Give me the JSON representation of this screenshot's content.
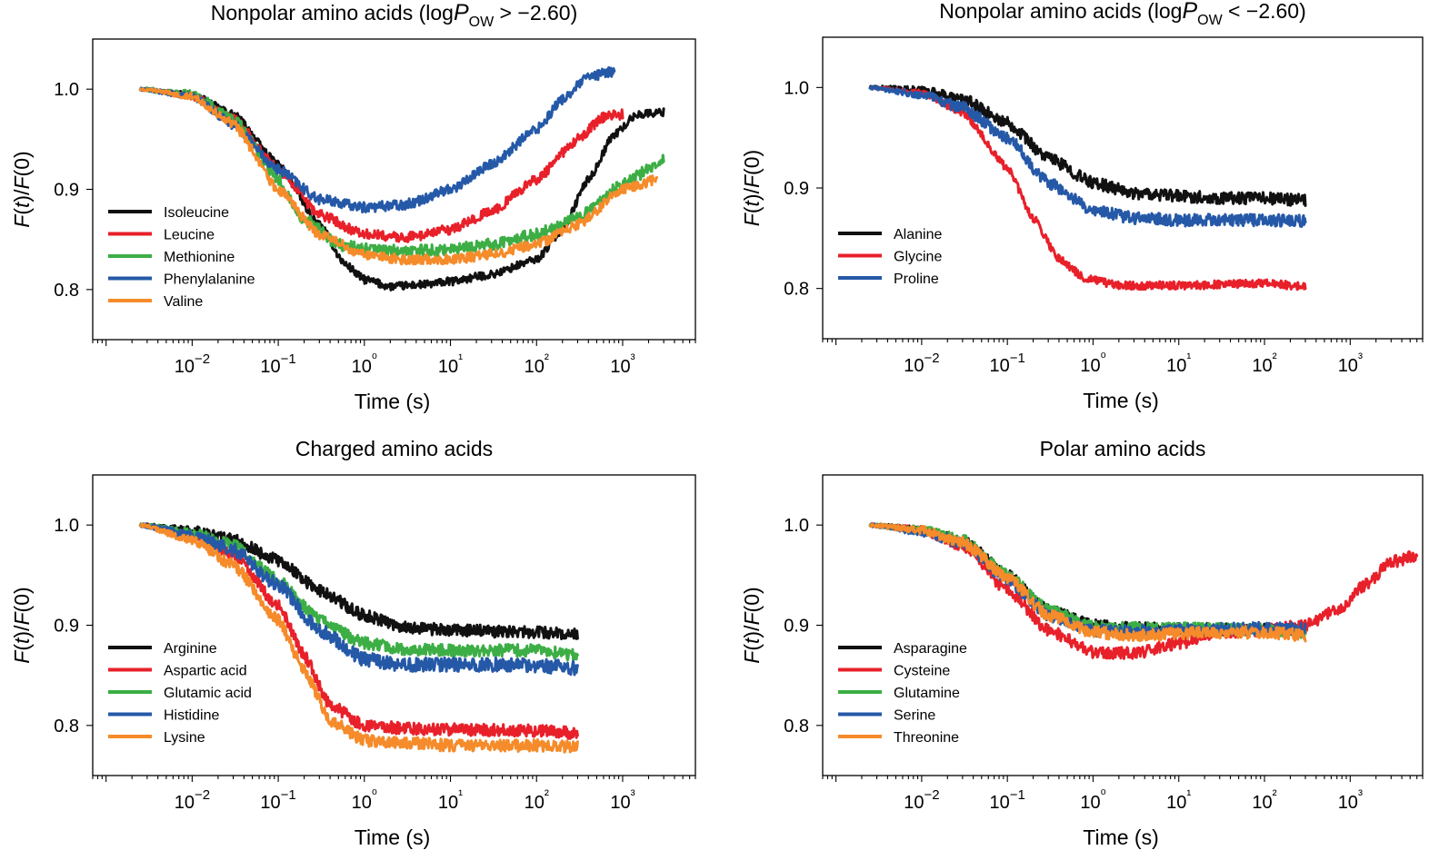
{
  "figure": {
    "x_axis_label": "Time (s)",
    "y_axis_label": "F(t)/F(0)"
  },
  "colors": {
    "black": "#111111",
    "red": "#e8202a",
    "green": "#3cae45",
    "blue": "#2559a8",
    "orange": "#f58b2a"
  },
  "chart_data": [
    {
      "type": "line",
      "title_main": "Nonpolar amino acids (log",
      "title_var": "P",
      "title_sub": "OW",
      "title_rest": " > −2.60)",
      "xlabel": "Time (s)",
      "ylabel": "F(t)/F(0)",
      "xscale": "log",
      "xlim": [
        0.0007,
        7000
      ],
      "ylim": [
        0.75,
        1.05
      ],
      "xticks": [
        "10−2",
        "10−1",
        "10⁰",
        "10¹",
        "10²",
        "10³"
      ],
      "yticks": [
        "0.8",
        "0.9",
        "1.0"
      ],
      "legend_position": "lower-left",
      "series": [
        {
          "name": "Isoleucine",
          "color": "#111111",
          "noise": 0.004,
          "points": [
            [
              0.0025,
              1.0
            ],
            [
              0.01,
              0.995
            ],
            [
              0.03,
              0.975
            ],
            [
              0.1,
              0.925
            ],
            [
              0.3,
              0.865
            ],
            [
              0.6,
              0.825
            ],
            [
              1,
              0.81
            ],
            [
              2,
              0.803
            ],
            [
              5,
              0.805
            ],
            [
              10,
              0.808
            ],
            [
              30,
              0.815
            ],
            [
              100,
              0.83
            ],
            [
              200,
              0.86
            ],
            [
              400,
              0.91
            ],
            [
              800,
              0.955
            ],
            [
              1500,
              0.975
            ],
            [
              3000,
              0.977
            ]
          ]
        },
        {
          "name": "Leucine",
          "color": "#e8202a",
          "noise": 0.005,
          "points": [
            [
              0.0025,
              1.0
            ],
            [
              0.01,
              0.993
            ],
            [
              0.03,
              0.97
            ],
            [
              0.1,
              0.92
            ],
            [
              0.3,
              0.875
            ],
            [
              1,
              0.855
            ],
            [
              3,
              0.852
            ],
            [
              10,
              0.86
            ],
            [
              30,
              0.878
            ],
            [
              100,
              0.91
            ],
            [
              300,
              0.95
            ],
            [
              600,
              0.972
            ],
            [
              1000,
              0.975
            ]
          ]
        },
        {
          "name": "Methionine",
          "color": "#3cae45",
          "noise": 0.006,
          "points": [
            [
              0.0025,
              1.0
            ],
            [
              0.01,
              0.995
            ],
            [
              0.03,
              0.97
            ],
            [
              0.1,
              0.91
            ],
            [
              0.2,
              0.87
            ],
            [
              0.5,
              0.845
            ],
            [
              1,
              0.84
            ],
            [
              3,
              0.838
            ],
            [
              10,
              0.84
            ],
            [
              30,
              0.845
            ],
            [
              100,
              0.855
            ],
            [
              300,
              0.872
            ],
            [
              1000,
              0.905
            ],
            [
              3000,
              0.93
            ]
          ]
        },
        {
          "name": "Phenylalanine",
          "color": "#2559a8",
          "noise": 0.005,
          "points": [
            [
              0.0025,
              1.0
            ],
            [
              0.01,
              0.993
            ],
            [
              0.03,
              0.965
            ],
            [
              0.1,
              0.92
            ],
            [
              0.3,
              0.89
            ],
            [
              1,
              0.882
            ],
            [
              3,
              0.885
            ],
            [
              10,
              0.9
            ],
            [
              30,
              0.925
            ],
            [
              100,
              0.96
            ],
            [
              200,
              0.99
            ],
            [
              400,
              1.012
            ],
            [
              800,
              1.018
            ]
          ]
        },
        {
          "name": "Valine",
          "color": "#f58b2a",
          "noise": 0.005,
          "points": [
            [
              0.0025,
              1.0
            ],
            [
              0.01,
              0.993
            ],
            [
              0.03,
              0.965
            ],
            [
              0.1,
              0.9
            ],
            [
              0.3,
              0.855
            ],
            [
              1,
              0.835
            ],
            [
              3,
              0.83
            ],
            [
              10,
              0.83
            ],
            [
              30,
              0.835
            ],
            [
              100,
              0.845
            ],
            [
              300,
              0.865
            ],
            [
              1000,
              0.9
            ],
            [
              2500,
              0.91
            ]
          ]
        }
      ]
    },
    {
      "type": "line",
      "title_main": "Nonpolar amino acids (log",
      "title_var": "P",
      "title_sub": "OW",
      "title_rest": " < −2.60)",
      "xlabel": "Time (s)",
      "ylabel": "F(t)/F(0)",
      "xscale": "log",
      "xlim": [
        0.0007,
        7000
      ],
      "ylim": [
        0.75,
        1.05
      ],
      "xticks": [
        "10−2",
        "10−1",
        "10⁰",
        "10¹",
        "10²",
        "10³"
      ],
      "yticks": [
        "0.8",
        "0.9",
        "1.0"
      ],
      "legend_position": "lower-left",
      "series": [
        {
          "name": "Alanine",
          "color": "#111111",
          "noise": 0.006,
          "points": [
            [
              0.0025,
              1.0
            ],
            [
              0.01,
              0.997
            ],
            [
              0.03,
              0.988
            ],
            [
              0.1,
              0.965
            ],
            [
              0.3,
              0.93
            ],
            [
              1,
              0.905
            ],
            [
              3,
              0.895
            ],
            [
              10,
              0.892
            ],
            [
              30,
              0.89
            ],
            [
              100,
              0.89
            ],
            [
              300,
              0.888
            ]
          ]
        },
        {
          "name": "Glycine",
          "color": "#e8202a",
          "noise": 0.004,
          "points": [
            [
              0.0025,
              1.0
            ],
            [
              0.01,
              0.995
            ],
            [
              0.03,
              0.975
            ],
            [
              0.1,
              0.92
            ],
            [
              0.2,
              0.87
            ],
            [
              0.4,
              0.83
            ],
            [
              0.8,
              0.81
            ],
            [
              2,
              0.803
            ],
            [
              10,
              0.803
            ],
            [
              100,
              0.805
            ],
            [
              300,
              0.802
            ]
          ]
        },
        {
          "name": "Proline",
          "color": "#2559a8",
          "noise": 0.006,
          "points": [
            [
              0.0025,
              1.0
            ],
            [
              0.01,
              0.993
            ],
            [
              0.03,
              0.98
            ],
            [
              0.1,
              0.95
            ],
            [
              0.3,
              0.905
            ],
            [
              1,
              0.878
            ],
            [
              3,
              0.87
            ],
            [
              10,
              0.868
            ],
            [
              100,
              0.868
            ],
            [
              300,
              0.867
            ]
          ]
        }
      ]
    },
    {
      "type": "line",
      "title_main": "Charged amino acids",
      "title_var": "",
      "title_sub": "",
      "title_rest": "",
      "xlabel": "Time (s)",
      "ylabel": "F(t)/F(0)",
      "xscale": "log",
      "xlim": [
        0.0007,
        7000
      ],
      "ylim": [
        0.75,
        1.05
      ],
      "xticks": [
        "10−2",
        "10−1",
        "10⁰",
        "10¹",
        "10²",
        "10³"
      ],
      "yticks": [
        "0.8",
        "0.9",
        "1.0"
      ],
      "legend_position": "lower-left",
      "series": [
        {
          "name": "Arginine",
          "color": "#111111",
          "noise": 0.006,
          "points": [
            [
              0.0025,
              1.0
            ],
            [
              0.01,
              0.995
            ],
            [
              0.03,
              0.985
            ],
            [
              0.1,
              0.965
            ],
            [
              0.3,
              0.935
            ],
            [
              1,
              0.91
            ],
            [
              3,
              0.898
            ],
            [
              10,
              0.895
            ],
            [
              100,
              0.893
            ],
            [
              300,
              0.891
            ]
          ]
        },
        {
          "name": "Aspartic acid",
          "color": "#e8202a",
          "noise": 0.006,
          "points": [
            [
              0.0025,
              1.0
            ],
            [
              0.01,
              0.99
            ],
            [
              0.03,
              0.97
            ],
            [
              0.1,
              0.92
            ],
            [
              0.2,
              0.87
            ],
            [
              0.4,
              0.82
            ],
            [
              1,
              0.8
            ],
            [
              3,
              0.797
            ],
            [
              10,
              0.796
            ],
            [
              100,
              0.795
            ],
            [
              300,
              0.792
            ]
          ]
        },
        {
          "name": "Glutamic acid",
          "color": "#3cae45",
          "noise": 0.006,
          "points": [
            [
              0.0025,
              1.0
            ],
            [
              0.01,
              0.993
            ],
            [
              0.03,
              0.98
            ],
            [
              0.1,
              0.945
            ],
            [
              0.3,
              0.905
            ],
            [
              1,
              0.882
            ],
            [
              3,
              0.876
            ],
            [
              10,
              0.875
            ],
            [
              100,
              0.875
            ],
            [
              300,
              0.87
            ]
          ]
        },
        {
          "name": "Histidine",
          "color": "#2559a8",
          "noise": 0.007,
          "points": [
            [
              0.0025,
              1.0
            ],
            [
              0.01,
              0.99
            ],
            [
              0.03,
              0.975
            ],
            [
              0.1,
              0.94
            ],
            [
              0.3,
              0.895
            ],
            [
              1,
              0.866
            ],
            [
              3,
              0.86
            ],
            [
              10,
              0.861
            ],
            [
              100,
              0.86
            ],
            [
              300,
              0.857
            ]
          ]
        },
        {
          "name": "Lysine",
          "color": "#f58b2a",
          "noise": 0.006,
          "points": [
            [
              0.0025,
              1.0
            ],
            [
              0.01,
              0.985
            ],
            [
              0.03,
              0.96
            ],
            [
              0.1,
              0.905
            ],
            [
              0.2,
              0.855
            ],
            [
              0.4,
              0.805
            ],
            [
              1,
              0.785
            ],
            [
              3,
              0.783
            ],
            [
              10,
              0.78
            ],
            [
              100,
              0.78
            ],
            [
              300,
              0.779
            ]
          ]
        }
      ]
    },
    {
      "type": "line",
      "title_main": "Polar amino acids",
      "title_var": "",
      "title_sub": "",
      "title_rest": "",
      "xlabel": "Time (s)",
      "ylabel": "F(t)/F(0)",
      "xscale": "log",
      "xlim": [
        0.0007,
        7000
      ],
      "ylim": [
        0.75,
        1.05
      ],
      "xticks": [
        "10−2",
        "10−1",
        "10⁰",
        "10¹",
        "10²",
        "10³"
      ],
      "yticks": [
        "0.8",
        "0.9",
        "1.0"
      ],
      "legend_position": "lower-left",
      "series": [
        {
          "name": "Asparagine",
          "color": "#111111",
          "noise": 0.006,
          "points": [
            [
              0.0025,
              1.0
            ],
            [
              0.01,
              0.995
            ],
            [
              0.03,
              0.985
            ],
            [
              0.1,
              0.95
            ],
            [
              0.3,
              0.915
            ],
            [
              1,
              0.9
            ],
            [
              3,
              0.897
            ],
            [
              10,
              0.896
            ],
            [
              100,
              0.896
            ],
            [
              300,
              0.895
            ]
          ]
        },
        {
          "name": "Cysteine",
          "color": "#e8202a",
          "noise": 0.006,
          "points": [
            [
              0.0025,
              1.0
            ],
            [
              0.01,
              0.995
            ],
            [
              0.03,
              0.98
            ],
            [
              0.1,
              0.935
            ],
            [
              0.3,
              0.895
            ],
            [
              1,
              0.873
            ],
            [
              3,
              0.872
            ],
            [
              10,
              0.882
            ],
            [
              30,
              0.893
            ],
            [
              100,
              0.895
            ],
            [
              300,
              0.9
            ],
            [
              700,
              0.915
            ],
            [
              1500,
              0.94
            ],
            [
              3000,
              0.963
            ],
            [
              6000,
              0.97
            ]
          ]
        },
        {
          "name": "Glutamine",
          "color": "#3cae45",
          "noise": 0.006,
          "points": [
            [
              0.0025,
              1.0
            ],
            [
              0.01,
              0.995
            ],
            [
              0.03,
              0.985
            ],
            [
              0.1,
              0.95
            ],
            [
              0.3,
              0.915
            ],
            [
              1,
              0.898
            ],
            [
              3,
              0.897
            ],
            [
              10,
              0.897
            ],
            [
              100,
              0.895
            ],
            [
              300,
              0.893
            ]
          ]
        },
        {
          "name": "Serine",
          "color": "#2559a8",
          "noise": 0.006,
          "points": [
            [
              0.0025,
              1.0
            ],
            [
              0.01,
              0.993
            ],
            [
              0.03,
              0.982
            ],
            [
              0.1,
              0.945
            ],
            [
              0.3,
              0.91
            ],
            [
              1,
              0.895
            ],
            [
              3,
              0.894
            ],
            [
              10,
              0.895
            ],
            [
              100,
              0.897
            ],
            [
              300,
              0.897
            ]
          ]
        },
        {
          "name": "Threonine",
          "color": "#f58b2a",
          "noise": 0.006,
          "points": [
            [
              0.0025,
              1.0
            ],
            [
              0.01,
              0.995
            ],
            [
              0.03,
              0.983
            ],
            [
              0.1,
              0.948
            ],
            [
              0.3,
              0.91
            ],
            [
              1,
              0.893
            ],
            [
              3,
              0.89
            ],
            [
              10,
              0.892
            ],
            [
              100,
              0.893
            ],
            [
              300,
              0.89
            ]
          ]
        }
      ]
    }
  ]
}
